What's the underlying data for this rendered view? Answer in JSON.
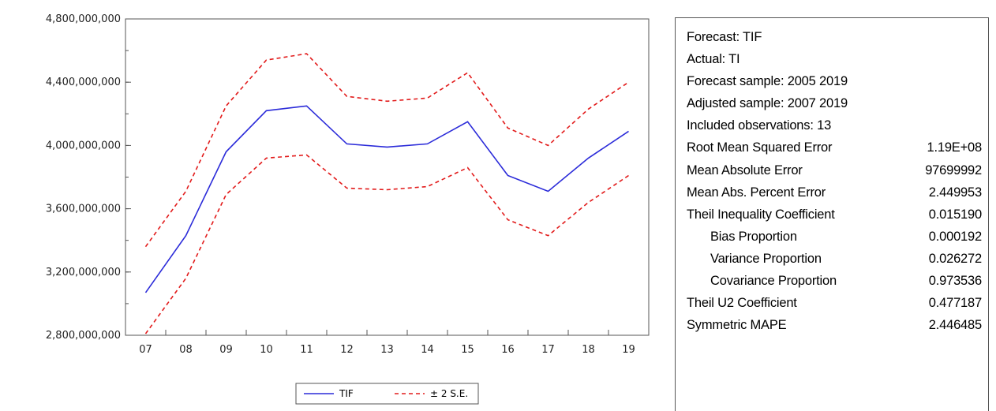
{
  "chart_data": {
    "type": "line",
    "x": [
      "07",
      "08",
      "09",
      "10",
      "11",
      "12",
      "13",
      "14",
      "15",
      "16",
      "17",
      "18",
      "19"
    ],
    "ylim": [
      2800000000,
      4800000000
    ],
    "yticks": [
      "4,800,000,000",
      "4,400,000,000",
      "4,000,000,000",
      "3,600,000,000",
      "3,200,000,000",
      "2,800,000,000"
    ],
    "ytick_values": [
      4800000000,
      4400000000,
      4000000000,
      3600000000,
      3200000000,
      2800000000
    ],
    "series": [
      {
        "name": "TIF",
        "color": "#2b2bd9",
        "dash": "solid",
        "values": [
          3070000000,
          3430000000,
          3960000000,
          4220000000,
          4250000000,
          4010000000,
          3990000000,
          4010000000,
          4150000000,
          3810000000,
          3710000000,
          3920000000,
          4090000000
        ]
      },
      {
        "name": "± 2 S.E.",
        "color": "#e21b1b",
        "dash": "dashed",
        "legend": true,
        "values": [
          3360000000,
          3710000000,
          4250000000,
          4540000000,
          4580000000,
          4310000000,
          4280000000,
          4300000000,
          4460000000,
          4110000000,
          4000000000,
          4230000000,
          4400000000
        ]
      },
      {
        "color": "#e21b1b",
        "dash": "dashed",
        "legend": false,
        "values": [
          2810000000,
          3160000000,
          3690000000,
          3920000000,
          3940000000,
          3730000000,
          3720000000,
          3740000000,
          3860000000,
          3530000000,
          3430000000,
          3640000000,
          3810000000
        ]
      }
    ],
    "legend_position": "bottom-center",
    "grid": false
  },
  "stats": [
    {
      "label": "Forecast: TIF",
      "value": ""
    },
    {
      "label": "Actual: TI",
      "value": ""
    },
    {
      "label": "Forecast sample: 2005 2019",
      "value": ""
    },
    {
      "label": "Adjusted sample: 2007 2019",
      "value": ""
    },
    {
      "label": "Included observations: 13",
      "value": ""
    },
    {
      "label": "Root Mean Squared Error",
      "value": "1.19E+08"
    },
    {
      "label": "Mean Absolute Error",
      "value": "97699992"
    },
    {
      "label": "Mean Abs. Percent Error",
      "value": "2.449953"
    },
    {
      "label": "Theil Inequality Coefficient",
      "value": "0.015190"
    },
    {
      "label": "Bias Proportion",
      "value": "0.000192",
      "indent": true
    },
    {
      "label": "Variance Proportion",
      "value": "0.026272",
      "indent": true
    },
    {
      "label": "Covariance Proportion",
      "value": "0.973536",
      "indent": true
    },
    {
      "label": "Theil U2 Coefficient",
      "value": "0.477187"
    },
    {
      "label": "Symmetric MAPE",
      "value": "2.446485"
    }
  ]
}
